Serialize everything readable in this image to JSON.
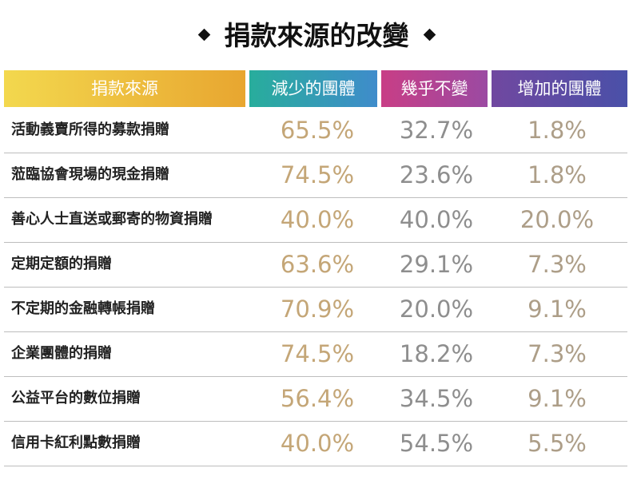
{
  "title": "捐款來源的改變",
  "table": {
    "header": [
      "捐款來源",
      "減少的團體",
      "幾乎不變",
      "增加的團體"
    ],
    "rows": [
      [
        "活動義賣所得的募款捐贈",
        "65.5%",
        "32.7%",
        "1.8%"
      ],
      [
        "蒞臨協會現場的現金捐贈",
        "74.5%",
        "23.6%",
        "1.8%"
      ],
      [
        "善心人士直送或郵寄的物資捐贈",
        "40.0%",
        "40.0%",
        "20.0%"
      ],
      [
        "定期定額的捐贈",
        "63.6%",
        "29.1%",
        "7.3%"
      ],
      [
        "不定期的金融轉帳捐贈",
        "70.9%",
        "20.0%",
        "9.1%"
      ],
      [
        "企業團體的捐贈",
        "74.5%",
        "18.2%",
        "7.3%"
      ],
      [
        "公益平台的數位捐贈",
        "56.4%",
        "34.5%",
        "9.1%"
      ],
      [
        "信用卡紅利點數捐贈",
        "40.0%",
        "54.5%",
        "5.5%"
      ]
    ]
  }
}
